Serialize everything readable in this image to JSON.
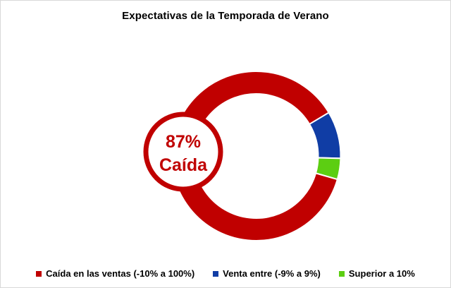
{
  "title": "Expectativas de la Temporada de Verano",
  "frame": {
    "background_color": "#FFFFFF",
    "border_color": "#D9D9D9"
  },
  "callout": {
    "line1": "87%",
    "line2": "Caída",
    "text_color": "#C00000",
    "border_color": "#C00000",
    "fill": "#FFFFFF"
  },
  "legend": [
    {
      "label": "Caída en las ventas (-10% a 100%)",
      "color": "#C00000"
    },
    {
      "label": "Venta entre (-9% a 9%)",
      "color": "#103DA5"
    },
    {
      "label": "Superior a 10%",
      "color": "#5CCE12"
    }
  ],
  "chart_data": {
    "type": "pie",
    "subtype": "doughnut",
    "title": "Expectativas de la Temporada de Verano",
    "categories": [
      "Caída en las ventas (-10% a 100%)",
      "Venta entre (-9% a 9%)",
      "Superior a 10%"
    ],
    "values": [
      87,
      9,
      4
    ],
    "unit": "%",
    "colors": [
      "#C00000",
      "#103DA5",
      "#5CCE12"
    ],
    "segment_separator_color": "#FFFFFF",
    "start_angle_deg": 106,
    "legend_position": "bottom",
    "annotation": "87% Caída"
  }
}
